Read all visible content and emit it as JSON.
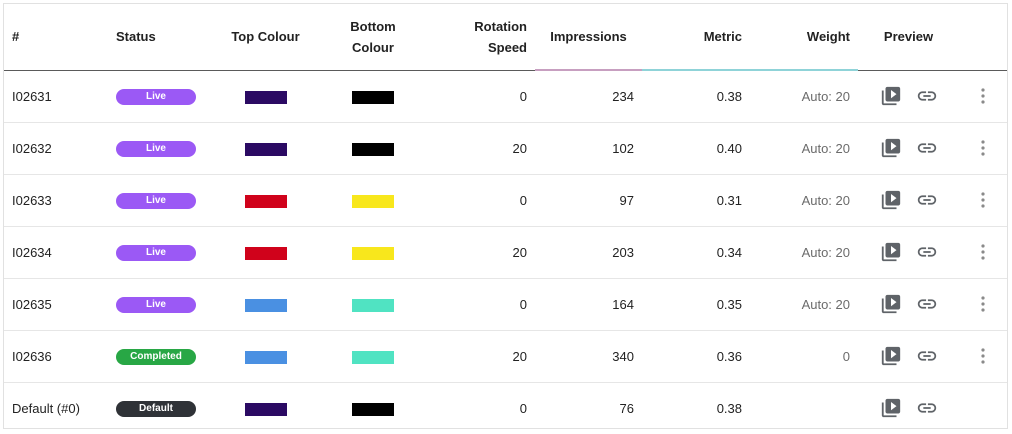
{
  "columns": {
    "id": "#",
    "status": "Status",
    "top_colour": "Top Colour",
    "bottom_colour_line1": "Bottom",
    "bottom_colour_line2": "Colour",
    "rotation_line1": "Rotation",
    "rotation_line2": "Speed",
    "impressions": "Impressions",
    "metric": "Metric",
    "weight": "Weight",
    "preview": "Preview"
  },
  "status_colors": {
    "Live": "#9b59f5",
    "Completed": "#28a745",
    "Default": "#2f3237"
  },
  "rows": [
    {
      "id": "I02631",
      "status": "Live",
      "top": "#2b0a63",
      "bottom": "#000000",
      "rotation": "0",
      "impressions": "234",
      "metric": "0.38",
      "weight": "Auto: 20",
      "has_menu": true
    },
    {
      "id": "I02632",
      "status": "Live",
      "top": "#2b0a63",
      "bottom": "#000000",
      "rotation": "20",
      "impressions": "102",
      "metric": "0.40",
      "weight": "Auto: 20",
      "has_menu": true
    },
    {
      "id": "I02633",
      "status": "Live",
      "top": "#d0021b",
      "bottom": "#f8e71c",
      "rotation": "0",
      "impressions": "97",
      "metric": "0.31",
      "weight": "Auto: 20",
      "has_menu": true
    },
    {
      "id": "I02634",
      "status": "Live",
      "top": "#d0021b",
      "bottom": "#f8e71c",
      "rotation": "20",
      "impressions": "203",
      "metric": "0.34",
      "weight": "Auto: 20",
      "has_menu": true
    },
    {
      "id": "I02635",
      "status": "Live",
      "top": "#4a90e2",
      "bottom": "#50e3c2",
      "rotation": "0",
      "impressions": "164",
      "metric": "0.35",
      "weight": "Auto: 20",
      "has_menu": true
    },
    {
      "id": "I02636",
      "status": "Completed",
      "top": "#4a90e2",
      "bottom": "#50e3c2",
      "rotation": "20",
      "impressions": "340",
      "metric": "0.36",
      "weight": "0",
      "has_menu": true
    },
    {
      "id": "Default (#0)",
      "status": "Default",
      "top": "#2b0a63",
      "bottom": "#000000",
      "rotation": "0",
      "impressions": "76",
      "metric": "0.38",
      "weight": "",
      "has_menu": false
    }
  ],
  "icons": {
    "preview": "video-library-icon",
    "link": "link-icon",
    "menu": "more-vertical-icon"
  }
}
